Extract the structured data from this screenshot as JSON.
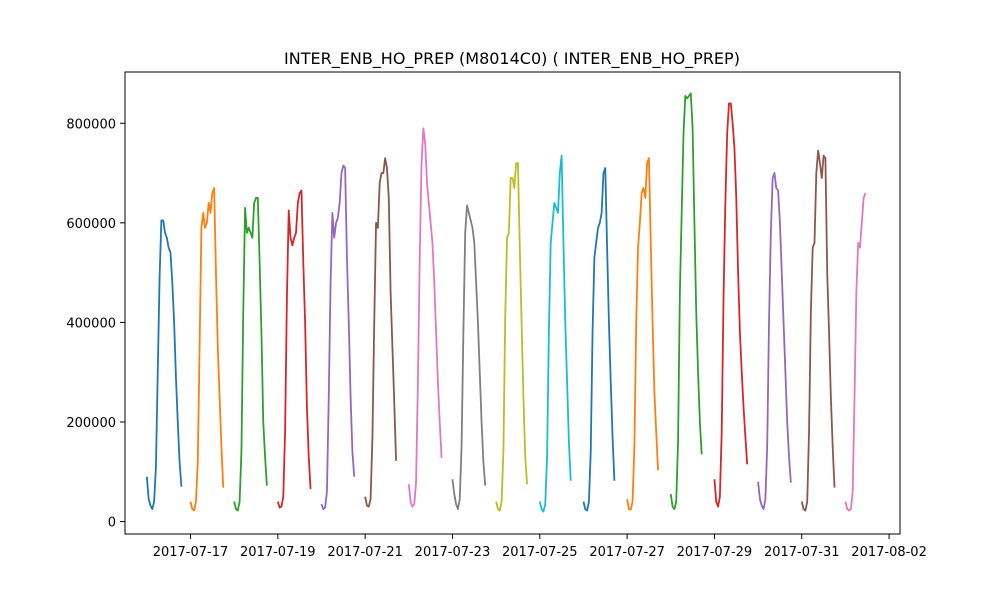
{
  "chart_data": {
    "type": "line",
    "title": "INTER_ENB_HO_PREP (M8014C0) ( INTER_ENB_HO_PREP)",
    "xlabel": "",
    "ylabel": "",
    "xlim": [
      "2017-07-15T12:00",
      "2017-08-02T06:00"
    ],
    "ylim": [
      -25000,
      903000
    ],
    "x_ticks": [
      "2017-07-17",
      "2017-07-19",
      "2017-07-21",
      "2017-07-23",
      "2017-07-25",
      "2017-07-27",
      "2017-07-29",
      "2017-07-31",
      "2017-08-02"
    ],
    "y_ticks": [
      0,
      200000,
      400000,
      600000,
      800000
    ],
    "grid": false,
    "legend": "none",
    "series": [
      {
        "date": "2017-07-16",
        "color": "#1f77b4",
        "x": [
          0,
          1,
          2,
          3,
          4,
          5,
          6,
          7,
          8,
          9,
          10,
          11,
          12,
          13,
          14,
          15,
          16,
          17,
          18,
          19,
          20,
          21,
          22,
          23
        ],
        "y": [
          90000,
          45000,
          32000,
          25000,
          40000,
          110000,
          300000,
          490000,
          605000,
          605000,
          580000,
          570000,
          550000,
          540000,
          480000,
          400000,
          290000,
          200000,
          120000,
          70000,
          null,
          null,
          null,
          null
        ]
      },
      {
        "date": "2017-07-17",
        "color": "#ff7f0e",
        "x": [
          0,
          1,
          2,
          3,
          4,
          5,
          6,
          7,
          8,
          9,
          10,
          11,
          12,
          13,
          14,
          15,
          16,
          17,
          18,
          19,
          20,
          21,
          22,
          23
        ],
        "y": [
          40000,
          25000,
          22000,
          40000,
          120000,
          350000,
          590000,
          620000,
          590000,
          600000,
          640000,
          620000,
          660000,
          670000,
          500000,
          350000,
          250000,
          150000,
          68000,
          null,
          null,
          null,
          null,
          null
        ]
      },
      {
        "date": "2017-07-18",
        "color": "#2ca02c",
        "x": [
          0,
          1,
          2,
          3,
          4,
          5,
          6,
          7,
          8,
          9,
          10,
          11,
          12,
          13,
          14,
          15,
          16,
          17,
          18,
          19,
          20,
          21,
          22,
          23
        ],
        "y": [
          40000,
          25000,
          22000,
          40000,
          140000,
          420000,
          630000,
          580000,
          590000,
          580000,
          570000,
          640000,
          650000,
          650000,
          520000,
          380000,
          200000,
          130000,
          72000,
          null,
          null,
          null,
          null,
          null
        ]
      },
      {
        "date": "2017-07-19",
        "color": "#d62728",
        "x": [
          0,
          1,
          2,
          3,
          4,
          5,
          6,
          7,
          8,
          9,
          10,
          11,
          12,
          13,
          14,
          15,
          16,
          17,
          18,
          19,
          20,
          21,
          22,
          23
        ],
        "y": [
          40000,
          28000,
          30000,
          50000,
          180000,
          450000,
          625000,
          570000,
          555000,
          570000,
          580000,
          640000,
          660000,
          665000,
          520000,
          400000,
          230000,
          130000,
          65000,
          null,
          null,
          null,
          null,
          null
        ]
      },
      {
        "date": "2017-07-20",
        "color": "#9467bd",
        "x": [
          0,
          1,
          2,
          3,
          4,
          5,
          6,
          7,
          8,
          9,
          10,
          11,
          12,
          13,
          14,
          15,
          16,
          17,
          18,
          19,
          20,
          21,
          22,
          23
        ],
        "y": [
          35000,
          25000,
          28000,
          60000,
          250000,
          480000,
          620000,
          570000,
          600000,
          610000,
          640000,
          700000,
          715000,
          710000,
          530000,
          400000,
          250000,
          140000,
          90000,
          null,
          null,
          null,
          null,
          null
        ]
      },
      {
        "date": "2017-07-21",
        "color": "#8c564b",
        "x": [
          0,
          1,
          2,
          3,
          4,
          5,
          6,
          7,
          8,
          9,
          10,
          11,
          12,
          13,
          14,
          15,
          16,
          17,
          18,
          19,
          20,
          21,
          22,
          23
        ],
        "y": [
          50000,
          32000,
          30000,
          45000,
          170000,
          400000,
          600000,
          590000,
          680000,
          700000,
          700000,
          730000,
          710000,
          650000,
          460000,
          350000,
          240000,
          122000,
          null,
          null,
          null,
          null,
          null,
          null
        ]
      },
      {
        "date": "2017-07-22",
        "color": "#e377c2",
        "x": [
          0,
          1,
          2,
          3,
          4,
          5,
          6,
          7,
          8,
          9,
          10,
          11,
          12,
          13,
          14,
          15,
          16,
          17,
          18,
          19,
          20,
          21,
          22,
          23
        ],
        "y": [
          75000,
          40000,
          30000,
          35000,
          80000,
          280000,
          530000,
          720000,
          790000,
          760000,
          680000,
          640000,
          600000,
          560000,
          480000,
          380000,
          280000,
          200000,
          128000,
          null,
          null,
          null,
          null,
          null
        ]
      },
      {
        "date": "2017-07-23",
        "color": "#7f7f7f",
        "x": [
          0,
          1,
          2,
          3,
          4,
          5,
          6,
          7,
          8,
          9,
          10,
          11,
          12,
          13,
          14,
          15,
          16,
          17,
          18,
          19,
          20,
          21,
          22,
          23
        ],
        "y": [
          85000,
          55000,
          35000,
          25000,
          45000,
          150000,
          380000,
          580000,
          635000,
          620000,
          605000,
          590000,
          560000,
          480000,
          400000,
          300000,
          200000,
          120000,
          72000,
          null,
          null,
          null,
          null,
          null
        ]
      },
      {
        "date": "2017-07-24",
        "color": "#bcbd22",
        "x": [
          0,
          1,
          2,
          3,
          4,
          5,
          6,
          7,
          8,
          9,
          10,
          11,
          12,
          13,
          14,
          15,
          16,
          17,
          18,
          19,
          20,
          21,
          22,
          23
        ],
        "y": [
          40000,
          25000,
          22000,
          40000,
          140000,
          410000,
          570000,
          580000,
          690000,
          690000,
          670000,
          720000,
          720000,
          550000,
          400000,
          250000,
          130000,
          75000,
          null,
          null,
          null,
          null,
          null,
          null
        ]
      },
      {
        "date": "2017-07-25",
        "color": "#17becf",
        "x": [
          0,
          1,
          2,
          3,
          4,
          5,
          6,
          7,
          8,
          9,
          10,
          11,
          12,
          13,
          14,
          15,
          16,
          17,
          18,
          19,
          20,
          21,
          22,
          23
        ],
        "y": [
          40000,
          25000,
          20000,
          35000,
          130000,
          380000,
          560000,
          600000,
          640000,
          630000,
          620000,
          700000,
          735000,
          560000,
          400000,
          280000,
          160000,
          82000,
          null,
          null,
          null,
          null,
          null,
          null
        ]
      },
      {
        "date": "2017-07-26",
        "color": "#1f77b4",
        "x": [
          0,
          1,
          2,
          3,
          4,
          5,
          6,
          7,
          8,
          9,
          10,
          11,
          12,
          13,
          14,
          15,
          16,
          17,
          18,
          19,
          20,
          21,
          22,
          23
        ],
        "y": [
          40000,
          25000,
          22000,
          40000,
          140000,
          380000,
          530000,
          560000,
          590000,
          600000,
          620000,
          700000,
          710000,
          550000,
          400000,
          280000,
          170000,
          82000,
          null,
          null,
          null,
          null,
          null,
          null
        ]
      },
      {
        "date": "2017-07-27",
        "color": "#ff7f0e",
        "x": [
          0,
          1,
          2,
          3,
          4,
          5,
          6,
          7,
          8,
          9,
          10,
          11,
          12,
          13,
          14,
          15,
          16,
          17,
          18,
          19,
          20,
          21,
          22,
          23
        ],
        "y": [
          45000,
          25000,
          24000,
          40000,
          150000,
          400000,
          550000,
          600000,
          660000,
          670000,
          650000,
          720000,
          730000,
          560000,
          400000,
          260000,
          180000,
          103000,
          null,
          null,
          null,
          null,
          null,
          null
        ]
      },
      {
        "date": "2017-07-28",
        "color": "#2ca02c",
        "x": [
          0,
          1,
          2,
          3,
          4,
          5,
          6,
          7,
          8,
          9,
          10,
          11,
          12,
          13,
          14,
          15,
          16,
          17,
          18,
          19,
          20,
          21,
          22,
          23
        ],
        "y": [
          55000,
          30000,
          25000,
          40000,
          160000,
          460000,
          620000,
          780000,
          855000,
          850000,
          855000,
          860000,
          790000,
          600000,
          420000,
          300000,
          200000,
          135000,
          null,
          null,
          null,
          null,
          null,
          null
        ]
      },
      {
        "date": "2017-07-29",
        "color": "#d62728",
        "x": [
          0,
          1,
          2,
          3,
          4,
          5,
          6,
          7,
          8,
          9,
          10,
          11,
          12,
          13,
          14,
          15,
          16,
          17,
          18,
          19,
          20,
          21,
          22,
          23
        ],
        "y": [
          85000,
          40000,
          30000,
          50000,
          180000,
          450000,
          640000,
          780000,
          840000,
          840000,
          800000,
          750000,
          650000,
          500000,
          380000,
          300000,
          230000,
          170000,
          115000,
          null,
          null,
          null,
          null,
          null
        ]
      },
      {
        "date": "2017-07-30",
        "color": "#9467bd",
        "x": [
          0,
          1,
          2,
          3,
          4,
          5,
          6,
          7,
          8,
          9,
          10,
          11,
          12,
          13,
          14,
          15,
          16,
          17,
          18,
          19,
          20,
          21,
          22,
          23
        ],
        "y": [
          80000,
          45000,
          32000,
          25000,
          45000,
          150000,
          400000,
          580000,
          690000,
          700000,
          670000,
          665000,
          600000,
          500000,
          400000,
          300000,
          200000,
          130000,
          78000,
          null,
          null,
          null,
          null,
          null
        ]
      },
      {
        "date": "2017-07-31",
        "color": "#8c564b",
        "x": [
          0,
          1,
          2,
          3,
          4,
          5,
          6,
          7,
          8,
          9,
          10,
          11,
          12,
          13,
          14,
          15,
          16,
          17,
          18,
          19,
          20,
          21,
          22,
          23
        ],
        "y": [
          40000,
          25000,
          22000,
          40000,
          180000,
          420000,
          550000,
          560000,
          700000,
          745000,
          720000,
          690000,
          735000,
          730000,
          500000,
          380000,
          250000,
          150000,
          68000,
          null,
          null,
          null,
          null,
          null
        ]
      },
      {
        "date": "2017-08-01",
        "color": "#e377c2",
        "x": [
          0,
          1,
          2,
          3,
          4,
          5,
          6,
          7,
          8,
          9,
          10,
          11,
          12,
          13,
          14,
          15,
          16,
          17,
          18,
          19,
          20,
          21,
          22,
          23
        ],
        "y": [
          40000,
          25000,
          22000,
          25000,
          60000,
          250000,
          460000,
          560000,
          550000,
          600000,
          650000,
          660000,
          null,
          null,
          null,
          null,
          null,
          null,
          null,
          null,
          null,
          null,
          null,
          null
        ]
      }
    ]
  }
}
